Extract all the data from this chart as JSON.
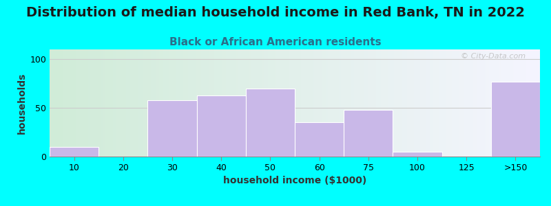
{
  "title": "Distribution of median household income in Red Bank, TN in 2022",
  "subtitle": "Black or African American residents",
  "xlabel": "household income ($1000)",
  "ylabel": "households",
  "background_color": "#00FFFF",
  "plot_bg_gradient_left": "#d0ecd8",
  "plot_bg_gradient_right": "#f5f5ff",
  "bar_color": "#c9b8e8",
  "bar_edgecolor": "#ffffff",
  "tick_labels": [
    "10",
    "20",
    "30",
    "40",
    "50",
    "60",
    "75",
    "100",
    "125",
    ">150"
  ],
  "tick_positions": [
    0,
    1,
    2,
    3,
    4,
    5,
    6,
    7,
    8,
    9
  ],
  "values": [
    10,
    0,
    58,
    63,
    70,
    35,
    48,
    5,
    0,
    77
  ],
  "ylim": [
    0,
    110
  ],
  "yticks": [
    0,
    50,
    100
  ],
  "title_fontsize": 14,
  "subtitle_fontsize": 11,
  "axis_label_fontsize": 10,
  "tick_fontsize": 9,
  "watermark_text": "© City-Data.com",
  "grid_color": "#cccccc",
  "subtitle_color": "#2a6e8a"
}
